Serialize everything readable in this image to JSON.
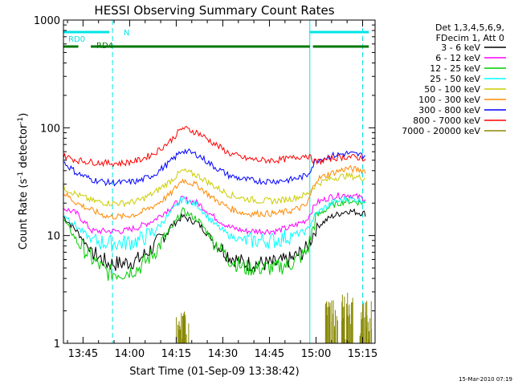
{
  "chart_data": {
    "type": "line",
    "title": "HESSI Observing Summary Count Rates",
    "xlabel": "Start Time (01-Sep-09 13:38:42)",
    "ylabel": "Count Rate (s",
    "ylabel_sup1": "-1",
    "ylabel_mid": " detector",
    "ylabel_sup2": "-1",
    "ylabel_end": ")",
    "y_scale": "log",
    "ylim": [
      1,
      1000
    ],
    "xlim": [
      "13:38:42",
      "15:19:00"
    ],
    "x_ticks": [
      "13:45",
      "14:00",
      "14:15",
      "14:30",
      "14:45",
      "15:00",
      "15:15"
    ],
    "y_ticks": [
      "1",
      "10",
      "100",
      "1000"
    ],
    "footer_date": "15-Mar-2010 07:19",
    "legend": {
      "header": [
        "Det 1,3,4,5,6,9,",
        "FDecim 1, Att 0"
      ],
      "placement": "right"
    },
    "markers": [
      {
        "label": "RD0",
        "color": "#00e5e5",
        "segments": [
          [
            "13:38:42",
            "13:53:30"
          ],
          [
            "14:58:00",
            "15:17:00"
          ]
        ]
      },
      {
        "label": "N",
        "color": "#00e5e5",
        "segments": []
      },
      {
        "label": "RD4",
        "color": "#007700",
        "segments": [
          [
            "13:38:42",
            "13:43:30"
          ],
          [
            "13:47:30",
            "14:58:00"
          ],
          [
            "14:59:00",
            "15:17:00"
          ]
        ]
      }
    ],
    "night_lines": {
      "solid": [
        "13:38:42",
        "14:58:00"
      ],
      "dashed": [
        "13:54:30",
        "15:15:00"
      ]
    },
    "series": [
      {
        "name": "3 - 6 keV",
        "color": "#000000",
        "values": [
          15,
          11,
          7,
          5.5,
          5.5,
          6,
          8,
          12,
          15,
          13,
          9,
          6.5,
          5.5,
          5.5,
          5.5,
          6,
          7.5,
          12,
          15,
          17,
          16
        ]
      },
      {
        "name": "6 - 12 keV",
        "color": "#ff00ff",
        "values": [
          18,
          16,
          11,
          11,
          11,
          12,
          14,
          18,
          22,
          20,
          15,
          12,
          11,
          11,
          11,
          12,
          14,
          20,
          23,
          24,
          22
        ]
      },
      {
        "name": "12 - 25 keV",
        "color": "#00cc00",
        "values": [
          14,
          9,
          6,
          4.5,
          4.5,
          5,
          7,
          11,
          17,
          14,
          9,
          6,
          5,
          5,
          5,
          5.5,
          7,
          15,
          19,
          21,
          20
        ]
      },
      {
        "name": "25 - 50 keV",
        "color": "#00ffff",
        "values": [
          16,
          12,
          9,
          8.5,
          8.5,
          9,
          11,
          16,
          22,
          19,
          13,
          10,
          9,
          9,
          9,
          10,
          11,
          16,
          20,
          22,
          21
        ]
      },
      {
        "name": "50 - 100 keV",
        "color": "#cccc00",
        "values": [
          28,
          24,
          21,
          20,
          20,
          21,
          25,
          32,
          40,
          36,
          29,
          24,
          22,
          21,
          21,
          22,
          24,
          30,
          34,
          36,
          34
        ]
      },
      {
        "name": "100 - 300 keV",
        "color": "#ff8800",
        "values": [
          25,
          20,
          17,
          15,
          15,
          16,
          19,
          24,
          33,
          29,
          22,
          18,
          16,
          16,
          16,
          17,
          19,
          33,
          38,
          42,
          40
        ]
      },
      {
        "name": "300 - 800 keV",
        "color": "#0000ff",
        "values": [
          48,
          38,
          33,
          31,
          31,
          32,
          37,
          48,
          62,
          56,
          44,
          36,
          33,
          32,
          32,
          33,
          36,
          50,
          55,
          58,
          55
        ]
      },
      {
        "name": "800 - 7000 keV",
        "color": "#ff0000",
        "values": [
          55,
          50,
          48,
          47,
          47,
          50,
          58,
          75,
          100,
          90,
          72,
          58,
          52,
          50,
          50,
          52,
          56,
          48,
          52,
          54,
          52
        ]
      },
      {
        "name": "7000 - 20000 keV",
        "color": "#888800",
        "values": [
          1,
          1,
          1,
          1,
          1,
          1,
          1,
          1,
          2,
          1,
          1,
          1,
          1,
          1,
          1,
          1,
          1,
          1,
          2.5,
          3,
          2.5
        ]
      }
    ],
    "x_sample_times": [
      "13:38:42",
      "13:43:00",
      "13:48:00",
      "13:53:00",
      "13:58:00",
      "14:03:00",
      "14:08:00",
      "14:13:00",
      "14:17:00",
      "14:22:00",
      "14:27:00",
      "14:32:00",
      "14:37:00",
      "14:42:00",
      "14:47:00",
      "14:52:00",
      "14:57:00",
      "15:00:00",
      "15:05:00",
      "15:10:00",
      "15:16:00"
    ],
    "colors": {
      "axis": "#000000",
      "background": "#ffffff"
    }
  }
}
